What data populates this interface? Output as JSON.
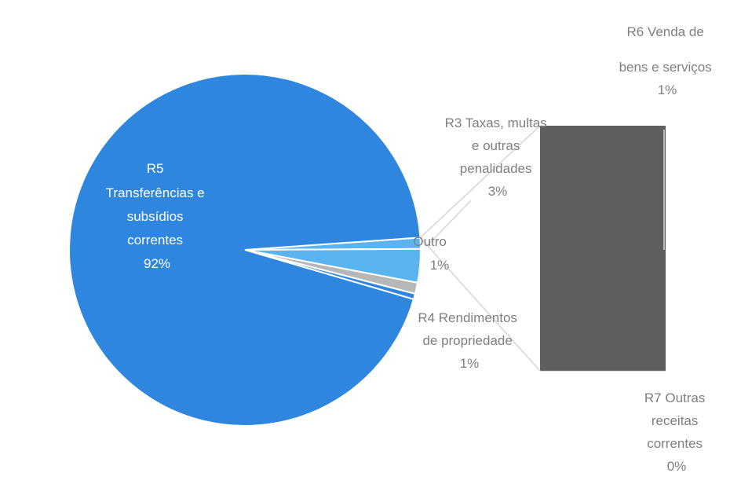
{
  "chart_data": {
    "type": "pie",
    "variant": "pie-of-bar",
    "colors": {
      "main": "#2e86de",
      "light": "#5ab4f0",
      "gray": "#b7b7b7",
      "bar": "#5d5f61",
      "connector": "#d6d6d6",
      "label_gray": "#7f7f7f"
    },
    "slices": [
      {
        "name": "R5 Transferências e subsídios correntes",
        "value": 92,
        "label_lines": [
          "R5",
          "Transferências e",
          "subsídios",
          "correntes",
          "92%"
        ],
        "color": "#2e86de"
      },
      {
        "name": "Outro",
        "value": 1,
        "label_lines": [
          "Outro",
          "1%"
        ],
        "color": "#5ab4f0"
      },
      {
        "name": "R3 Taxas, multas e outras penalidades",
        "value": 3,
        "label_lines": [
          "R3 Taxas, multas",
          "e outras",
          "penalidades",
          "3%"
        ],
        "color": "#5ab4f0"
      },
      {
        "name": "R4 Rendimentos de propriedade",
        "value": 1,
        "label_lines": [
          "R4 Rendimentos",
          "de propriedade",
          "1%"
        ],
        "color": "#b7b7b7"
      },
      {
        "name": "sem rótulo",
        "value": 0.5,
        "label_lines": [],
        "color": "#2e86de"
      }
    ],
    "secondary_bar": [
      {
        "name": "R6 Venda de bens e serviços",
        "value": 1,
        "label_lines": [
          "R6 Venda de",
          "bens e serviços",
          "1%"
        ],
        "color": "#5d5f61"
      },
      {
        "name": "R7 Outras receitas correntes",
        "value": 0,
        "label_lines": [
          "R7 Outras",
          "receitas",
          "correntes",
          "0%"
        ],
        "color": "#5d5f61"
      }
    ]
  }
}
